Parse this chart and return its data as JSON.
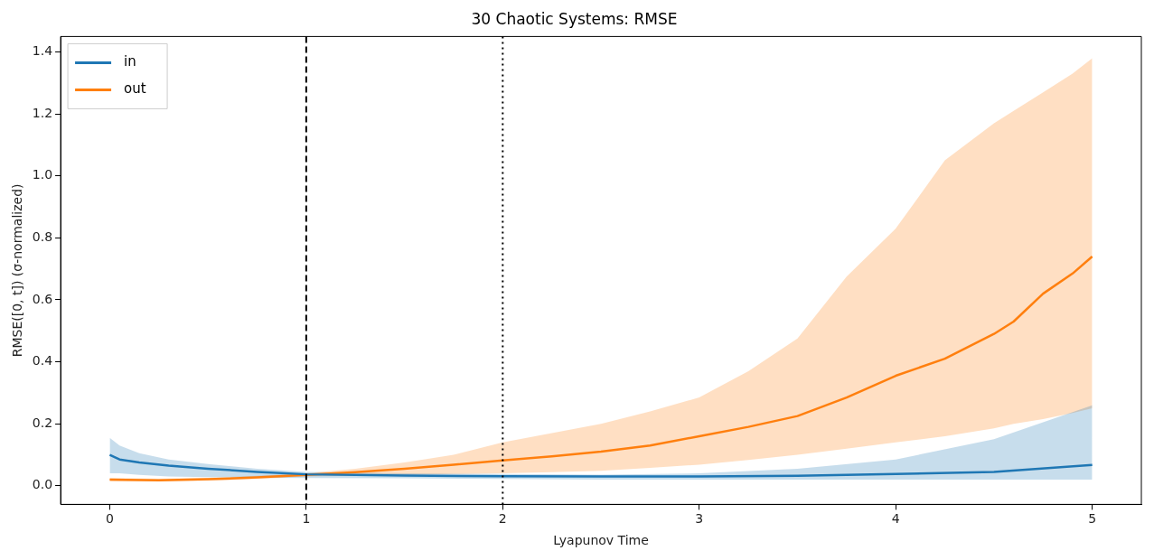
{
  "chart_data": {
    "type": "line",
    "title": "30 Chaotic Systems: RMSE",
    "xlabel": "Lyapunov Time",
    "ylabel": "RMSE([0, t]) (σ-normalized)",
    "xlim": [
      -0.25,
      5.25
    ],
    "xticks": [
      0,
      1,
      2,
      3,
      4,
      5
    ],
    "ylim": [
      -0.06,
      1.45
    ],
    "yticks": [
      {
        "value": 0,
        "label": "0.0"
      },
      {
        "value": 0.2,
        "label": "0.2"
      },
      {
        "value": 0.4,
        "label": "0.4"
      },
      {
        "value": 0.6,
        "label": "0.6"
      },
      {
        "value": 0.8,
        "label": "0.8"
      },
      {
        "value": 1.0,
        "label": "1.0"
      },
      {
        "value": 1.2,
        "label": "1.2"
      },
      {
        "value": 1.4,
        "label": "1.4"
      }
    ],
    "grid": false,
    "legend": "top left",
    "marker": "none",
    "line_style": "solid",
    "series": [
      {
        "name": "in",
        "color": "#1f77b4",
        "x": [
          0,
          0.05,
          0.15,
          0.3,
          0.5,
          0.75,
          1,
          1.5,
          2,
          2.5,
          3,
          3.5,
          4,
          4.5,
          5
        ],
        "values": [
          0.1,
          0.085,
          0.075,
          0.065,
          0.055,
          0.045,
          0.037,
          0.033,
          0.031,
          0.03,
          0.03,
          0.032,
          0.038,
          0.045,
          0.067
        ],
        "lower": [
          0.04,
          0.04,
          0.035,
          0.03,
          0.028,
          0.026,
          0.025,
          0.024,
          0.022,
          0.02,
          0.02,
          0.02,
          0.02,
          0.02,
          0.02
        ],
        "upper": [
          0.155,
          0.13,
          0.105,
          0.085,
          0.07,
          0.055,
          0.045,
          0.04,
          0.038,
          0.036,
          0.04,
          0.055,
          0.085,
          0.15,
          0.26
        ]
      },
      {
        "name": "out",
        "color": "#ff7f0e",
        "x": [
          0,
          0.25,
          0.5,
          0.75,
          1,
          1.25,
          1.5,
          1.75,
          2,
          2.25,
          2.5,
          2.75,
          3,
          3.25,
          3.5,
          3.75,
          4,
          4.25,
          4.5,
          4.6,
          4.75,
          4.9,
          5
        ],
        "values": [
          0.02,
          0.018,
          0.021,
          0.027,
          0.035,
          0.044,
          0.055,
          0.068,
          0.082,
          0.095,
          0.11,
          0.13,
          0.16,
          0.19,
          0.225,
          0.285,
          0.355,
          0.41,
          0.49,
          0.53,
          0.62,
          0.685,
          0.74
        ],
        "lower": [
          0.015,
          0.014,
          0.016,
          0.022,
          0.03,
          0.032,
          0.035,
          0.038,
          0.04,
          0.044,
          0.048,
          0.058,
          0.068,
          0.083,
          0.1,
          0.12,
          0.14,
          0.16,
          0.185,
          0.2,
          0.215,
          0.235,
          0.25
        ],
        "upper": [
          0.025,
          0.023,
          0.026,
          0.032,
          0.04,
          0.055,
          0.075,
          0.1,
          0.14,
          0.17,
          0.2,
          0.24,
          0.285,
          0.37,
          0.475,
          0.675,
          0.83,
          1.05,
          1.17,
          1.21,
          1.27,
          1.33,
          1.38
        ]
      }
    ],
    "ref_lines": [
      {
        "axis": "x",
        "value": 1,
        "color": "#000000",
        "line_style": "dashed"
      },
      {
        "axis": "x",
        "value": 2,
        "color": "#000000",
        "line_style": "dotted"
      }
    ]
  }
}
